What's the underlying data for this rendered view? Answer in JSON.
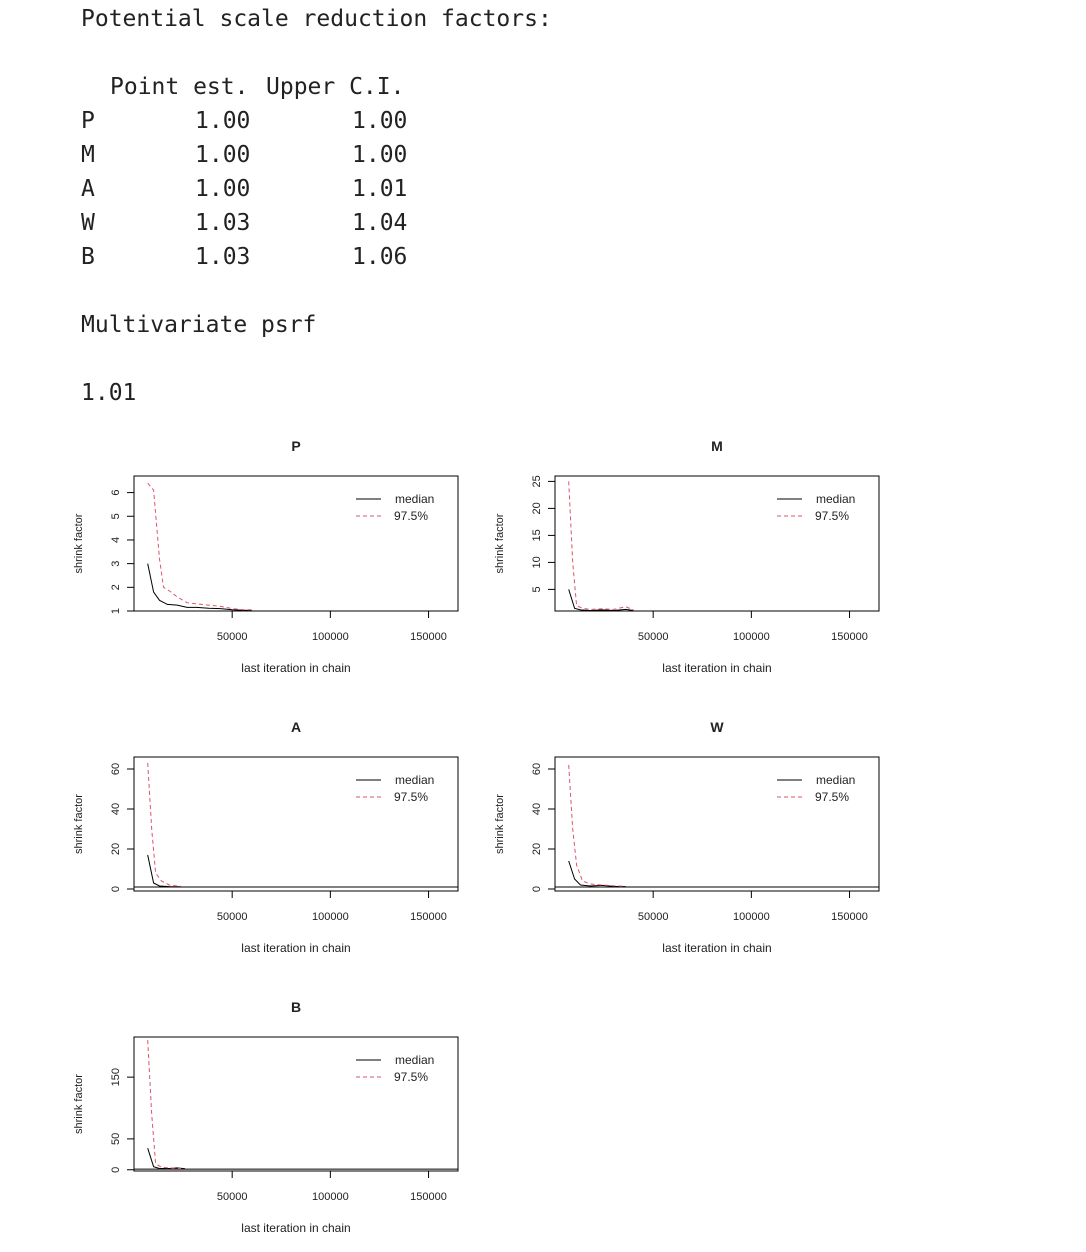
{
  "psrf": {
    "title": "Potential scale reduction factors:",
    "header_point": "Point est.",
    "header_upper": "Upper C.I.",
    "rows": [
      {
        "name": "P",
        "point": "1.00",
        "upper": "1.00"
      },
      {
        "name": "M",
        "point": "1.00",
        "upper": "1.00"
      },
      {
        "name": "A",
        "point": "1.00",
        "upper": "1.01"
      },
      {
        "name": "W",
        "point": "1.03",
        "upper": "1.04"
      },
      {
        "name": "B",
        "point": "1.03",
        "upper": "1.06"
      }
    ],
    "multivariate_title": "Multivariate psrf",
    "multivariate_value": "1.01"
  },
  "colors": {
    "median": "#000000",
    "upper": "#df536b"
  },
  "chart_data": [
    {
      "type": "line",
      "title": "P",
      "xlabel": "last iteration in chain",
      "ylabel": "shrink factor",
      "xlim": [
        0,
        165000
      ],
      "ylim": [
        1,
        6.7
      ],
      "x_ticks": [
        50000,
        100000,
        150000
      ],
      "y_ticks": [
        1,
        2,
        3,
        4,
        5,
        6
      ],
      "legend": [
        "median",
        "97.5%"
      ],
      "legend_position": "top-right",
      "series": [
        {
          "name": "median",
          "style": "solid",
          "x": [
            7000,
            10000,
            13000,
            17000,
            22000,
            27000,
            32000,
            38000,
            44000,
            50000,
            56000,
            60000
          ],
          "y": [
            3.0,
            1.8,
            1.45,
            1.28,
            1.25,
            1.15,
            1.15,
            1.12,
            1.1,
            1.05,
            1.03,
            1.02
          ]
        },
        {
          "name": "97.5%",
          "style": "dashed",
          "x": [
            7000,
            10000,
            13000,
            15000,
            18000,
            22000,
            27000,
            32000,
            38000,
            44000,
            50000,
            56000,
            60000
          ],
          "y": [
            6.4,
            6.1,
            3.2,
            2.0,
            1.85,
            1.6,
            1.35,
            1.3,
            1.25,
            1.2,
            1.1,
            1.05,
            1.05
          ]
        }
      ]
    },
    {
      "type": "line",
      "title": "M",
      "xlabel": "last iteration in chain",
      "ylabel": "shrink factor",
      "xlim": [
        0,
        165000
      ],
      "ylim": [
        1,
        26
      ],
      "x_ticks": [
        50000,
        100000,
        150000
      ],
      "y_ticks": [
        5,
        10,
        15,
        20,
        25
      ],
      "legend": [
        "median",
        "97.5%"
      ],
      "legend_position": "top-right",
      "series": [
        {
          "name": "median",
          "style": "solid",
          "x": [
            7000,
            10000,
            13000,
            18000,
            24000,
            30000,
            36000,
            40000
          ],
          "y": [
            5.0,
            1.5,
            1.2,
            1.1,
            1.2,
            1.1,
            1.3,
            1.1
          ]
        },
        {
          "name": "97.5%",
          "style": "dashed",
          "x": [
            7000,
            9000,
            11000,
            14000,
            18000,
            24000,
            30000,
            36000,
            40000
          ],
          "y": [
            25.0,
            10.0,
            2.0,
            1.5,
            1.3,
            1.4,
            1.3,
            1.8,
            1.2
          ]
        }
      ]
    },
    {
      "type": "line",
      "title": "A",
      "xlabel": "last iteration in chain",
      "ylabel": "shrink factor",
      "xlim": [
        0,
        165000
      ],
      "ylim": [
        -1,
        66
      ],
      "x_ticks": [
        50000,
        100000,
        150000
      ],
      "y_ticks": [
        0,
        20,
        40,
        60
      ],
      "legend": [
        "median",
        "97.5%"
      ],
      "legend_position": "top-right",
      "series": [
        {
          "name": "median",
          "style": "solid",
          "x": [
            7000,
            10000,
            13000,
            18000,
            24000
          ],
          "y": [
            17.0,
            3.0,
            1.5,
            1.2,
            1.1
          ]
        },
        {
          "name": "97.5%",
          "style": "dashed",
          "x": [
            7000,
            9000,
            11000,
            14000,
            18000,
            24000
          ],
          "y": [
            63.0,
            30.0,
            8.0,
            4.0,
            2.0,
            1.3
          ]
        }
      ]
    },
    {
      "type": "line",
      "title": "W",
      "xlabel": "last iteration in chain",
      "ylabel": "shrink factor",
      "xlim": [
        0,
        165000
      ],
      "ylim": [
        -1,
        66
      ],
      "x_ticks": [
        50000,
        100000,
        150000
      ],
      "y_ticks": [
        0,
        20,
        40,
        60
      ],
      "legend": [
        "median",
        "97.5%"
      ],
      "legend_position": "top-right",
      "series": [
        {
          "name": "median",
          "style": "solid",
          "x": [
            7000,
            10000,
            13000,
            18000,
            24000,
            30000,
            36000
          ],
          "y": [
            14.0,
            5.0,
            2.0,
            1.5,
            1.8,
            1.3,
            1.2
          ]
        },
        {
          "name": "97.5%",
          "style": "dashed",
          "x": [
            7000,
            9000,
            11000,
            14000,
            18000,
            24000,
            30000,
            36000
          ],
          "y": [
            62.0,
            30.0,
            12.0,
            4.0,
            2.5,
            2.0,
            1.6,
            1.4
          ]
        }
      ]
    },
    {
      "type": "line",
      "title": "B",
      "xlabel": "last iteration in chain",
      "ylabel": "shrink factor",
      "xlim": [
        0,
        165000
      ],
      "ylim": [
        -2,
        215
      ],
      "x_ticks": [
        50000,
        100000,
        150000
      ],
      "y_ticks": [
        0,
        50,
        150
      ],
      "legend": [
        "median",
        "97.5%"
      ],
      "legend_position": "top-right",
      "series": [
        {
          "name": "median",
          "style": "solid",
          "x": [
            7000,
            10000,
            13000,
            18000,
            22000,
            26000
          ],
          "y": [
            35.0,
            5.0,
            2.0,
            2.0,
            3.0,
            1.5
          ]
        },
        {
          "name": "97.5%",
          "style": "dashed",
          "x": [
            7000,
            9000,
            11000,
            14000,
            18000,
            24000
          ],
          "y": [
            210.0,
            90.0,
            10.0,
            4.0,
            3.0,
            2.0
          ]
        }
      ]
    }
  ]
}
